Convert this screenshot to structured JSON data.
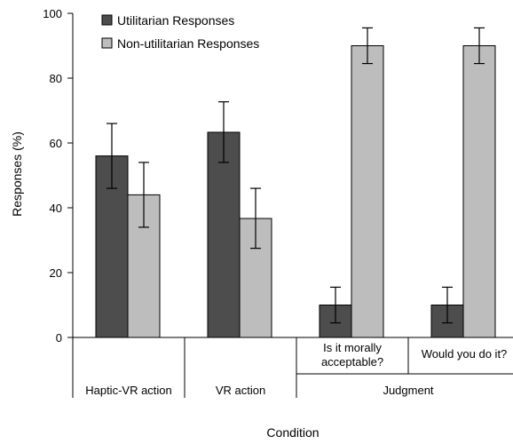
{
  "chart_data": {
    "type": "bar",
    "xlabel": "Condition",
    "ylabel": "Responses (%)",
    "ylim": [
      0,
      100
    ],
    "yticks": [
      0,
      20,
      40,
      60,
      80,
      100
    ],
    "grid": false,
    "legend_position": "top-left",
    "categories": [
      "Haptic-VR action",
      "VR action",
      "Is it morally acceptable?",
      "Would you do it?"
    ],
    "category_groups": [
      {
        "label": "Haptic-VR action",
        "members": [
          "Haptic-VR action"
        ]
      },
      {
        "label": "VR action",
        "members": [
          "VR action"
        ]
      },
      {
        "label": "Judgment",
        "members": [
          "Is it morally acceptable?",
          "Would you do it?"
        ]
      }
    ],
    "sublabels": [
      {
        "category": "Is it morally acceptable?",
        "lines": [
          "Is it morally",
          "acceptable?"
        ]
      },
      {
        "category": "Would you do it?",
        "lines": [
          "Would you do it?"
        ]
      }
    ],
    "series": [
      {
        "name": "Utilitarian Responses",
        "color": "#4d4d4d",
        "values": [
          56,
          63.3,
          10,
          10
        ],
        "error_low": [
          46,
          54,
          4.5,
          4.5
        ],
        "error_high": [
          66,
          72.7,
          15.5,
          15.5
        ]
      },
      {
        "name": "Non-utilitarian Responses",
        "color": "#bdbdbd",
        "values": [
          44,
          36.7,
          90,
          90
        ],
        "error_low": [
          34,
          27.5,
          84.5,
          84.5
        ],
        "error_high": [
          54,
          46,
          95.5,
          95.5
        ]
      }
    ]
  }
}
